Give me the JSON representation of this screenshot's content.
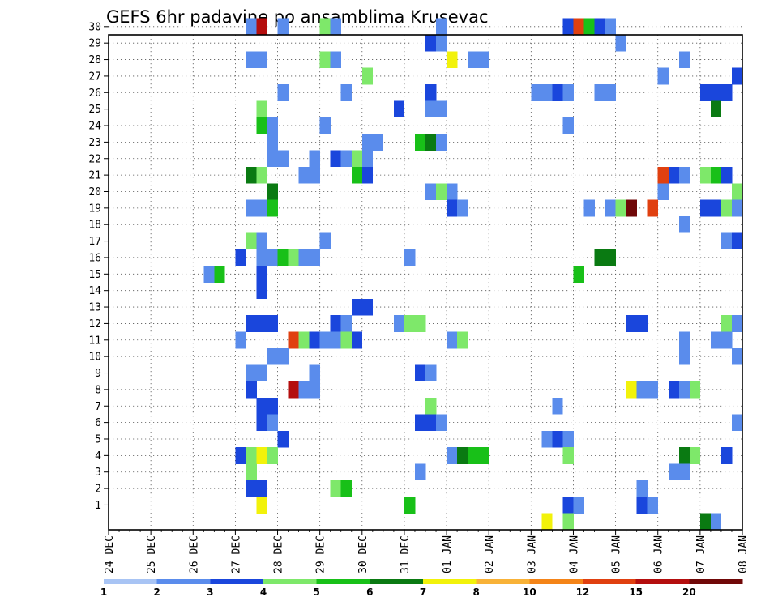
{
  "chart_data": {
    "type": "heatmap",
    "title": "GEFS 6hr padavine po ansamblima Krusevac",
    "xlabel": "",
    "ylabel": "",
    "x_tick_labels": [
      "24 DEC",
      "25 DEC",
      "26 DEC",
      "27 DEC",
      "28 DEC",
      "29 DEC",
      "30 DEC",
      "31 DEC",
      "01 JAN",
      "02 JAN",
      "03 JAN",
      "04 JAN",
      "05 JAN",
      "06 JAN",
      "07 JAN",
      "08 JAN"
    ],
    "y_tick_labels": [
      "1",
      "2",
      "3",
      "4",
      "5",
      "6",
      "7",
      "8",
      "9",
      "10",
      "11",
      "12",
      "13",
      "14",
      "15",
      "16",
      "17",
      "18",
      "19",
      "20",
      "21",
      "22",
      "23",
      "24",
      "25",
      "26",
      "27",
      "28",
      "29",
      "30"
    ],
    "y_range": [
      0,
      30
    ],
    "time_step_hours": 6,
    "grid": true,
    "colorbar": {
      "levels": [
        "1",
        "2",
        "3",
        "4",
        "5",
        "6",
        "7",
        "8",
        "10",
        "12",
        "15",
        "20"
      ],
      "colors": [
        "#a8c4f4",
        "#5a8cec",
        "#1a46dc",
        "#7ee86a",
        "#18c018",
        "#0a7a12",
        "#f2f20a",
        "#f8b238",
        "#f48418",
        "#e04010",
        "#b40e0e",
        "#700808"
      ]
    },
    "cells_format": "[member, time_step_index_from_24_DEC_00UTC, colorbar_class]",
    "cells": [
      [
        30,
        13,
        1
      ],
      [
        30,
        14,
        10
      ],
      [
        30,
        16,
        1
      ],
      [
        30,
        20,
        3
      ],
      [
        30,
        21,
        1
      ],
      [
        30,
        31,
        1
      ],
      [
        30,
        43,
        2
      ],
      [
        30,
        44,
        9
      ],
      [
        30,
        45,
        4
      ],
      [
        30,
        46,
        2
      ],
      [
        30,
        47,
        1
      ],
      [
        29,
        30,
        2
      ],
      [
        29,
        31,
        1
      ],
      [
        29,
        48,
        1
      ],
      [
        28,
        13,
        1
      ],
      [
        28,
        14,
        1
      ],
      [
        28,
        20,
        3
      ],
      [
        28,
        21,
        1
      ],
      [
        28,
        32,
        6
      ],
      [
        28,
        34,
        1
      ],
      [
        28,
        35,
        1
      ],
      [
        28,
        54,
        1
      ],
      [
        27,
        24,
        3
      ],
      [
        27,
        52,
        1
      ],
      [
        27,
        59,
        2
      ],
      [
        26,
        16,
        1
      ],
      [
        26,
        22,
        1
      ],
      [
        26,
        30,
        2
      ],
      [
        26,
        40,
        1
      ],
      [
        26,
        41,
        1
      ],
      [
        26,
        42,
        2
      ],
      [
        26,
        43,
        1
      ],
      [
        26,
        46,
        1
      ],
      [
        26,
        47,
        1
      ],
      [
        26,
        56,
        2
      ],
      [
        26,
        57,
        2
      ],
      [
        26,
        58,
        2
      ],
      [
        25,
        14,
        3
      ],
      [
        25,
        27,
        2
      ],
      [
        25,
        30,
        1
      ],
      [
        25,
        31,
        1
      ],
      [
        25,
        57,
        5
      ],
      [
        24,
        14,
        4
      ],
      [
        24,
        15,
        1
      ],
      [
        24,
        20,
        1
      ],
      [
        24,
        43,
        1
      ],
      [
        23,
        15,
        1
      ],
      [
        23,
        24,
        1
      ],
      [
        23,
        25,
        1
      ],
      [
        23,
        29,
        4
      ],
      [
        23,
        30,
        5
      ],
      [
        23,
        31,
        1
      ],
      [
        22,
        15,
        1
      ],
      [
        22,
        16,
        1
      ],
      [
        22,
        19,
        1
      ],
      [
        22,
        21,
        2
      ],
      [
        22,
        22,
        1
      ],
      [
        22,
        23,
        3
      ],
      [
        22,
        24,
        1
      ],
      [
        21,
        13,
        5
      ],
      [
        21,
        14,
        3
      ],
      [
        21,
        18,
        1
      ],
      [
        21,
        19,
        1
      ],
      [
        21,
        23,
        4
      ],
      [
        21,
        24,
        2
      ],
      [
        21,
        52,
        9
      ],
      [
        21,
        53,
        2
      ],
      [
        21,
        54,
        1
      ],
      [
        21,
        56,
        3
      ],
      [
        21,
        57,
        4
      ],
      [
        21,
        58,
        2
      ],
      [
        20,
        15,
        5
      ],
      [
        20,
        30,
        1
      ],
      [
        20,
        31,
        3
      ],
      [
        20,
        32,
        1
      ],
      [
        20,
        52,
        1
      ],
      [
        20,
        59,
        3
      ],
      [
        19,
        13,
        1
      ],
      [
        19,
        14,
        1
      ],
      [
        19,
        15,
        4
      ],
      [
        19,
        32,
        2
      ],
      [
        19,
        33,
        1
      ],
      [
        19,
        45,
        1
      ],
      [
        19,
        47,
        1
      ],
      [
        19,
        48,
        3
      ],
      [
        19,
        49,
        11
      ],
      [
        19,
        51,
        9
      ],
      [
        19,
        56,
        2
      ],
      [
        19,
        57,
        2
      ],
      [
        19,
        58,
        3
      ],
      [
        19,
        59,
        1
      ],
      [
        18,
        54,
        1
      ],
      [
        17,
        13,
        3
      ],
      [
        17,
        14,
        1
      ],
      [
        17,
        20,
        1
      ],
      [
        17,
        58,
        1
      ],
      [
        17,
        59,
        2
      ],
      [
        16,
        12,
        2
      ],
      [
        16,
        14,
        1
      ],
      [
        16,
        15,
        1
      ],
      [
        16,
        16,
        4
      ],
      [
        16,
        17,
        3
      ],
      [
        16,
        18,
        1
      ],
      [
        16,
        19,
        1
      ],
      [
        16,
        28,
        1
      ],
      [
        16,
        46,
        5
      ],
      [
        16,
        47,
        5
      ],
      [
        15,
        9,
        1
      ],
      [
        15,
        10,
        4
      ],
      [
        15,
        14,
        2
      ],
      [
        15,
        44,
        4
      ],
      [
        14,
        14,
        2
      ],
      [
        13,
        23,
        2
      ],
      [
        13,
        24,
        2
      ],
      [
        12,
        13,
        2
      ],
      [
        12,
        14,
        2
      ],
      [
        12,
        15,
        2
      ],
      [
        12,
        21,
        2
      ],
      [
        12,
        22,
        1
      ],
      [
        12,
        27,
        1
      ],
      [
        12,
        28,
        3
      ],
      [
        12,
        29,
        3
      ],
      [
        12,
        49,
        2
      ],
      [
        12,
        50,
        2
      ],
      [
        12,
        58,
        3
      ],
      [
        12,
        59,
        1
      ],
      [
        11,
        12,
        1
      ],
      [
        11,
        17,
        9
      ],
      [
        11,
        18,
        3
      ],
      [
        11,
        19,
        2
      ],
      [
        11,
        20,
        1
      ],
      [
        11,
        21,
        1
      ],
      [
        11,
        22,
        3
      ],
      [
        11,
        23,
        2
      ],
      [
        11,
        32,
        1
      ],
      [
        11,
        33,
        3
      ],
      [
        11,
        54,
        1
      ],
      [
        11,
        57,
        1
      ],
      [
        11,
        58,
        1
      ],
      [
        10,
        15,
        1
      ],
      [
        10,
        16,
        1
      ],
      [
        10,
        54,
        1
      ],
      [
        10,
        59,
        1
      ],
      [
        9,
        13,
        1
      ],
      [
        9,
        14,
        1
      ],
      [
        9,
        19,
        1
      ],
      [
        9,
        29,
        2
      ],
      [
        9,
        30,
        1
      ],
      [
        8,
        13,
        2
      ],
      [
        8,
        17,
        10
      ],
      [
        8,
        18,
        1
      ],
      [
        8,
        19,
        1
      ],
      [
        8,
        49,
        6
      ],
      [
        8,
        50,
        1
      ],
      [
        8,
        51,
        1
      ],
      [
        8,
        53,
        2
      ],
      [
        8,
        54,
        1
      ],
      [
        8,
        55,
        3
      ],
      [
        7,
        14,
        2
      ],
      [
        7,
        15,
        2
      ],
      [
        7,
        30,
        3
      ],
      [
        7,
        42,
        1
      ],
      [
        6,
        14,
        2
      ],
      [
        6,
        15,
        1
      ],
      [
        6,
        29,
        2
      ],
      [
        6,
        30,
        2
      ],
      [
        6,
        31,
        1
      ],
      [
        6,
        59,
        1
      ],
      [
        5,
        16,
        2
      ],
      [
        5,
        41,
        1
      ],
      [
        5,
        42,
        2
      ],
      [
        5,
        43,
        1
      ],
      [
        4,
        12,
        2
      ],
      [
        4,
        13,
        3
      ],
      [
        4,
        14,
        6
      ],
      [
        4,
        15,
        3
      ],
      [
        4,
        32,
        1
      ],
      [
        4,
        33,
        5
      ],
      [
        4,
        34,
        4
      ],
      [
        4,
        35,
        4
      ],
      [
        4,
        43,
        3
      ],
      [
        4,
        54,
        5
      ],
      [
        4,
        55,
        3
      ],
      [
        4,
        58,
        2
      ],
      [
        3,
        13,
        3
      ],
      [
        3,
        29,
        1
      ],
      [
        3,
        53,
        1
      ],
      [
        3,
        54,
        1
      ],
      [
        2,
        13,
        2
      ],
      [
        2,
        14,
        2
      ],
      [
        2,
        21,
        3
      ],
      [
        2,
        22,
        4
      ],
      [
        2,
        50,
        1
      ],
      [
        1,
        14,
        6
      ],
      [
        1,
        28,
        4
      ],
      [
        1,
        43,
        2
      ],
      [
        1,
        44,
        1
      ],
      [
        1,
        50,
        2
      ],
      [
        1,
        51,
        1
      ],
      [
        0,
        41,
        6
      ],
      [
        0,
        43,
        3
      ],
      [
        0,
        56,
        5
      ],
      [
        0,
        57,
        1
      ]
    ]
  }
}
